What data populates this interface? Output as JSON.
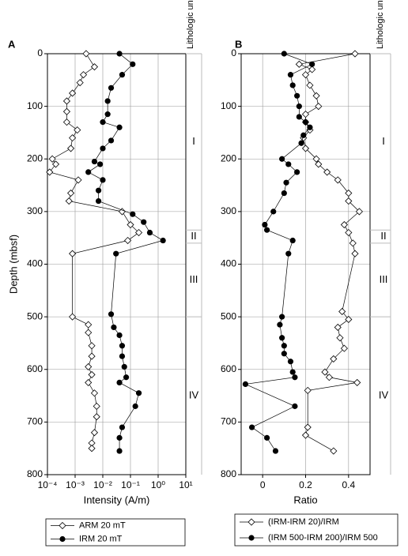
{
  "chart_data": [
    {
      "type": "line",
      "panel_label": "A",
      "xlabel": "Intensity (A/m)",
      "ylabel": "Depth (mbsf)",
      "xscale": "log",
      "xlim": [
        0.0001,
        10
      ],
      "xticks": [
        {
          "value": 0.0001,
          "label": "10⁻⁴"
        },
        {
          "value": 0.001,
          "label": "10⁻³"
        },
        {
          "value": 0.01,
          "label": "10⁻²"
        },
        {
          "value": 0.1,
          "label": "10⁻¹"
        },
        {
          "value": 1,
          "label": "10⁰"
        },
        {
          "value": 10,
          "label": "10¹"
        }
      ],
      "ylim": [
        0,
        800
      ],
      "y_inverted": true,
      "yticks": [
        0,
        100,
        200,
        300,
        400,
        500,
        600,
        700,
        800
      ],
      "grid": true,
      "units_title": "Lithologic units",
      "units": [
        {
          "name": "I",
          "top": 0,
          "bottom": 335
        },
        {
          "name": "II",
          "top": 335,
          "bottom": 360
        },
        {
          "name": "III",
          "top": 360,
          "bottom": 500
        },
        {
          "name": "IV",
          "top": 500,
          "bottom": 800
        }
      ],
      "series": [
        {
          "name": "ARM 20 mT",
          "marker": "diamond-open",
          "color": "#000000",
          "depths": [
            0,
            25,
            40,
            55,
            75,
            90,
            110,
            130,
            145,
            160,
            180,
            200,
            210,
            225,
            240,
            265,
            280,
            300,
            325,
            340,
            355,
            380,
            500,
            515,
            530,
            555,
            575,
            595,
            610,
            625,
            645,
            670,
            690,
            720,
            740,
            750
          ],
          "values": [
            0.0025,
            0.005,
            0.002,
            0.0015,
            0.0008,
            0.0005,
            0.0005,
            0.0005,
            0.0012,
            0.0008,
            0.0007,
            0.00015,
            0.0002,
            0.00012,
            0.0013,
            0.0007,
            0.0006,
            0.05,
            0.1,
            0.2,
            0.08,
            0.0008,
            0.0008,
            0.003,
            0.003,
            0.004,
            0.004,
            0.003,
            0.004,
            0.003,
            0.005,
            0.006,
            0.006,
            0.005,
            0.004,
            0.004
          ]
        },
        {
          "name": "IRM 20 mT",
          "marker": "circle-filled",
          "color": "#000000",
          "depths": [
            0,
            20,
            40,
            65,
            90,
            115,
            130,
            140,
            165,
            180,
            205,
            210,
            225,
            240,
            260,
            280,
            305,
            320,
            340,
            355,
            380,
            495,
            520,
            535,
            555,
            575,
            595,
            615,
            625,
            645,
            670,
            710,
            730,
            755
          ],
          "values": [
            0.04,
            0.12,
            0.05,
            0.02,
            0.015,
            0.015,
            0.01,
            0.04,
            0.02,
            0.01,
            0.005,
            0.008,
            0.003,
            0.01,
            0.007,
            0.007,
            0.12,
            0.3,
            0.5,
            1.5,
            0.03,
            0.02,
            0.025,
            0.04,
            0.05,
            0.05,
            0.06,
            0.07,
            0.04,
            0.2,
            0.15,
            0.05,
            0.04,
            0.04
          ]
        }
      ]
    },
    {
      "type": "line",
      "panel_label": "B",
      "xlabel": "Ratio",
      "xscale": "linear",
      "xlim": [
        -0.1,
        0.5
      ],
      "xticks": [
        0,
        0.2,
        0.4
      ],
      "ylim": [
        0,
        800
      ],
      "y_inverted": true,
      "yticks": [
        0,
        100,
        200,
        300,
        400,
        500,
        600,
        700,
        800
      ],
      "grid": true,
      "units_title": "Lithologic units",
      "units": [
        {
          "name": "I",
          "top": 0,
          "bottom": 335
        },
        {
          "name": "II",
          "top": 335,
          "bottom": 360
        },
        {
          "name": "III",
          "top": 360,
          "bottom": 500
        },
        {
          "name": "IV",
          "top": 500,
          "bottom": 800
        }
      ],
      "series": [
        {
          "name": "(IRM-IRM 20)/IRM",
          "marker": "diamond-open",
          "color": "#000000",
          "depths": [
            0,
            20,
            30,
            40,
            60,
            80,
            100,
            115,
            130,
            145,
            160,
            180,
            200,
            210,
            225,
            240,
            265,
            280,
            300,
            325,
            340,
            360,
            380,
            490,
            505,
            520,
            540,
            560,
            580,
            605,
            615,
            625,
            640,
            710,
            725,
            755
          ],
          "values": [
            0.43,
            0.17,
            0.23,
            0.2,
            0.22,
            0.25,
            0.26,
            0.2,
            0.2,
            0.22,
            0.19,
            0.2,
            0.25,
            0.26,
            0.3,
            0.35,
            0.4,
            0.4,
            0.45,
            0.38,
            0.4,
            0.42,
            0.43,
            0.37,
            0.4,
            0.35,
            0.36,
            0.38,
            0.33,
            0.29,
            0.31,
            0.44,
            0.21,
            0.21,
            0.2,
            0.33
          ]
        },
        {
          "name": "(IRM 500-IRM 200)/IRM 500",
          "marker": "circle-filled",
          "color": "#000000",
          "depths": [
            0,
            20,
            40,
            60,
            80,
            100,
            120,
            130,
            140,
            155,
            170,
            200,
            210,
            225,
            245,
            265,
            300,
            325,
            335,
            355,
            380,
            500,
            515,
            540,
            555,
            570,
            585,
            605,
            615,
            628,
            670,
            710,
            730,
            755
          ],
          "values": [
            0.1,
            0.23,
            0.13,
            0.14,
            0.16,
            0.17,
            0.17,
            0.2,
            0.22,
            0.19,
            0.18,
            0.09,
            0.12,
            0.16,
            0.11,
            0.1,
            0.05,
            0.01,
            0.02,
            0.14,
            0.12,
            0.09,
            0.08,
            0.09,
            0.1,
            0.1,
            0.13,
            0.14,
            0.15,
            -0.08,
            0.15,
            -0.05,
            0.02,
            0.06
          ]
        }
      ]
    }
  ]
}
